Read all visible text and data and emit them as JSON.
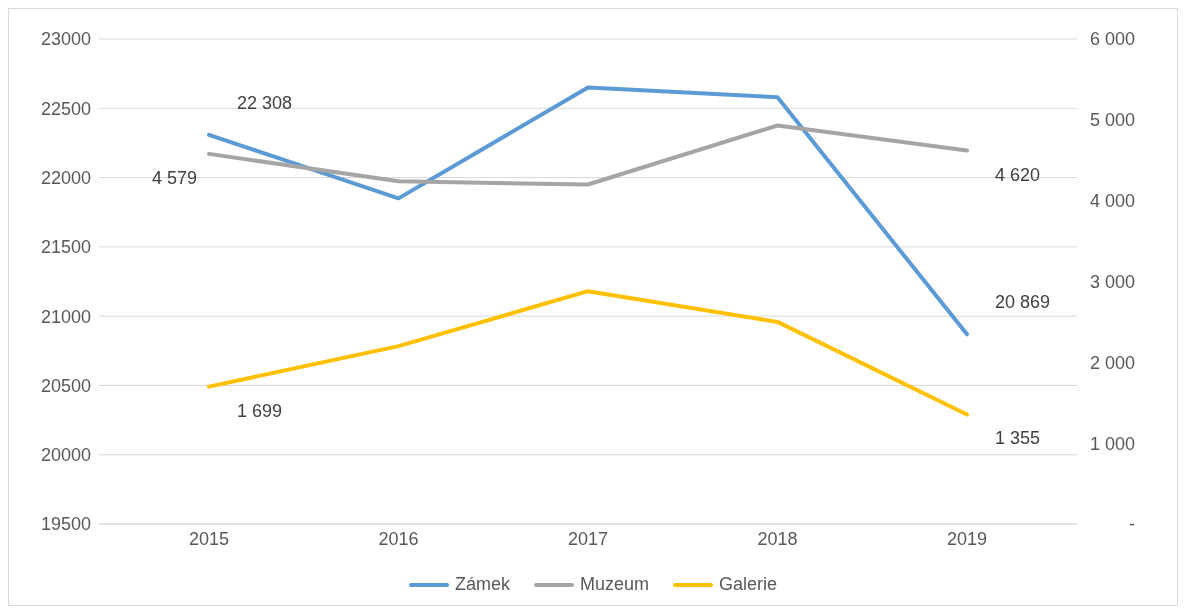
{
  "chart_data": {
    "type": "line",
    "categories": [
      "2015",
      "2016",
      "2017",
      "2018",
      "2019"
    ],
    "series": [
      {
        "name": "Zámek",
        "color": "#5b9bd5",
        "values": [
          22308,
          21850,
          22650,
          22580,
          20869
        ],
        "value_labels": [
          "22 308",
          null,
          null,
          null,
          "20 869"
        ]
      },
      {
        "name": "Muzeum",
        "color": "#a5a5a5",
        "axis": "y2",
        "values": [
          4579,
          4240,
          4200,
          4930,
          4620
        ],
        "value_labels": [
          "4 579",
          null,
          null,
          null,
          "4 620"
        ]
      },
      {
        "name": "Galerie",
        "color": "#ffc000",
        "axis": "y2",
        "values": [
          1699,
          2200,
          2880,
          2500,
          1355
        ],
        "value_labels": [
          "1 699",
          null,
          null,
          null,
          "1 355"
        ]
      }
    ],
    "ylim": [
      19500,
      23000
    ],
    "yticks": [
      19500,
      20000,
      20500,
      21000,
      21500,
      22000,
      22500,
      23000
    ],
    "y2lim": [
      0,
      6000
    ],
    "y2ticks": [
      {
        "value": 0,
        "label": "-"
      },
      {
        "value": 1000,
        "label": "1 000"
      },
      {
        "value": 2000,
        "label": "2 000"
      },
      {
        "value": 3000,
        "label": "3 000"
      },
      {
        "value": 4000,
        "label": "4 000"
      },
      {
        "value": 5000,
        "label": "5 000"
      },
      {
        "value": 6000,
        "label": "6 000"
      }
    ],
    "grid": "y",
    "legend": "bottom",
    "marker": "none",
    "line_style": "solid"
  }
}
